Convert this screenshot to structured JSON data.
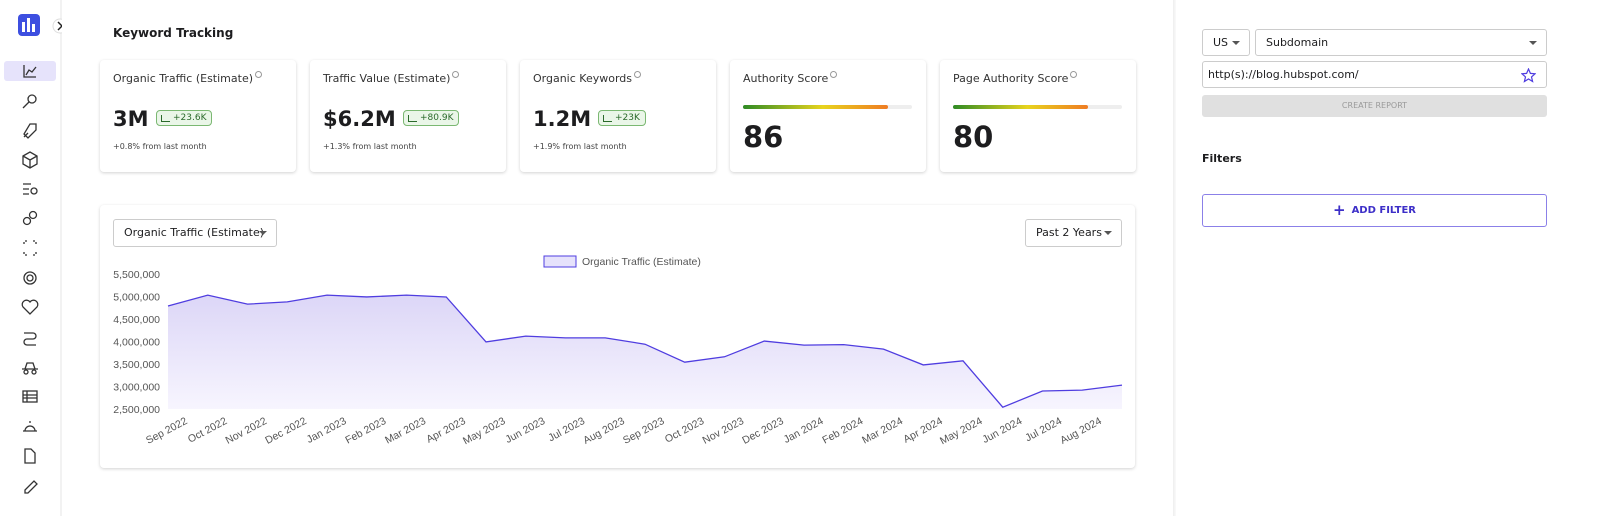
{
  "header": {
    "title": "Keyword Tracking"
  },
  "cards": [
    {
      "title": "Organic Traffic (Estimate)",
      "value": "3M",
      "change": "+23.6K",
      "note": "+0.8% from last month"
    },
    {
      "title": "Traffic Value (Estimate)",
      "value": "$6.2M",
      "change": "+80.9K",
      "note": "+1.3% from last month"
    },
    {
      "title": "Organic Keywords",
      "value": "1.2M",
      "change": "+23K",
      "note": "+1.9% from last month"
    },
    {
      "title": "Authority Score",
      "score": 86,
      "range": [
        0,
        100
      ]
    },
    {
      "title": "Page Authority Score",
      "score": 80,
      "range": [
        0,
        100
      ]
    }
  ],
  "chart_controls": {
    "metric": "Organic Traffic (Estimate)",
    "period": "Past 2 Years"
  },
  "chart_data": {
    "type": "line",
    "categories": [
      "Sep 2022",
      "Oct 2022",
      "Nov 2022",
      "Dec 2022",
      "Jan 2023",
      "Feb 2023",
      "Mar 2023",
      "Apr 2023",
      "May 2023",
      "Jun 2023",
      "Jul 2023",
      "Aug 2023",
      "Sep 2023",
      "Oct 2023",
      "Nov 2023",
      "Dec 2023",
      "Jan 2024",
      "Feb 2024",
      "Mar 2024",
      "Apr 2024",
      "May 2024",
      "Jun 2024",
      "Jul 2024",
      "Aug 2024",
      null
    ],
    "series": [
      {
        "name": "Organic Traffic (Estimate)",
        "color": "#4f3de0",
        "values": [
          4790000,
          5030000,
          4830000,
          4880000,
          5030000,
          4990000,
          5030000,
          4990000,
          3990000,
          4120000,
          4080000,
          4080000,
          3940000,
          3540000,
          3660000,
          4010000,
          3920000,
          3930000,
          3830000,
          3480000,
          3570000,
          2540000,
          2900000,
          2920000,
          3030000
        ]
      }
    ],
    "ylim": [
      2500000,
      5500000
    ],
    "yticks": [
      {
        "value": 2500000,
        "label": "2,500,000"
      },
      {
        "value": 3000000,
        "label": "3,000,000"
      },
      {
        "value": 3500000,
        "label": "3,500,000"
      },
      {
        "value": 4000000,
        "label": "4,000,000"
      },
      {
        "value": 4500000,
        "label": "4,500,000"
      },
      {
        "value": 5000000,
        "label": "5,000,000"
      },
      {
        "value": 5500000,
        "label": "5,500,000"
      }
    ],
    "grid": false
  },
  "side_panel": {
    "country": "US",
    "scope": "Subdomain",
    "url": "http(s)://blog.hubspot.com/",
    "button": "CREATE REPORT",
    "filters_title": "Filters",
    "add_filter": "ADD FILTER"
  }
}
